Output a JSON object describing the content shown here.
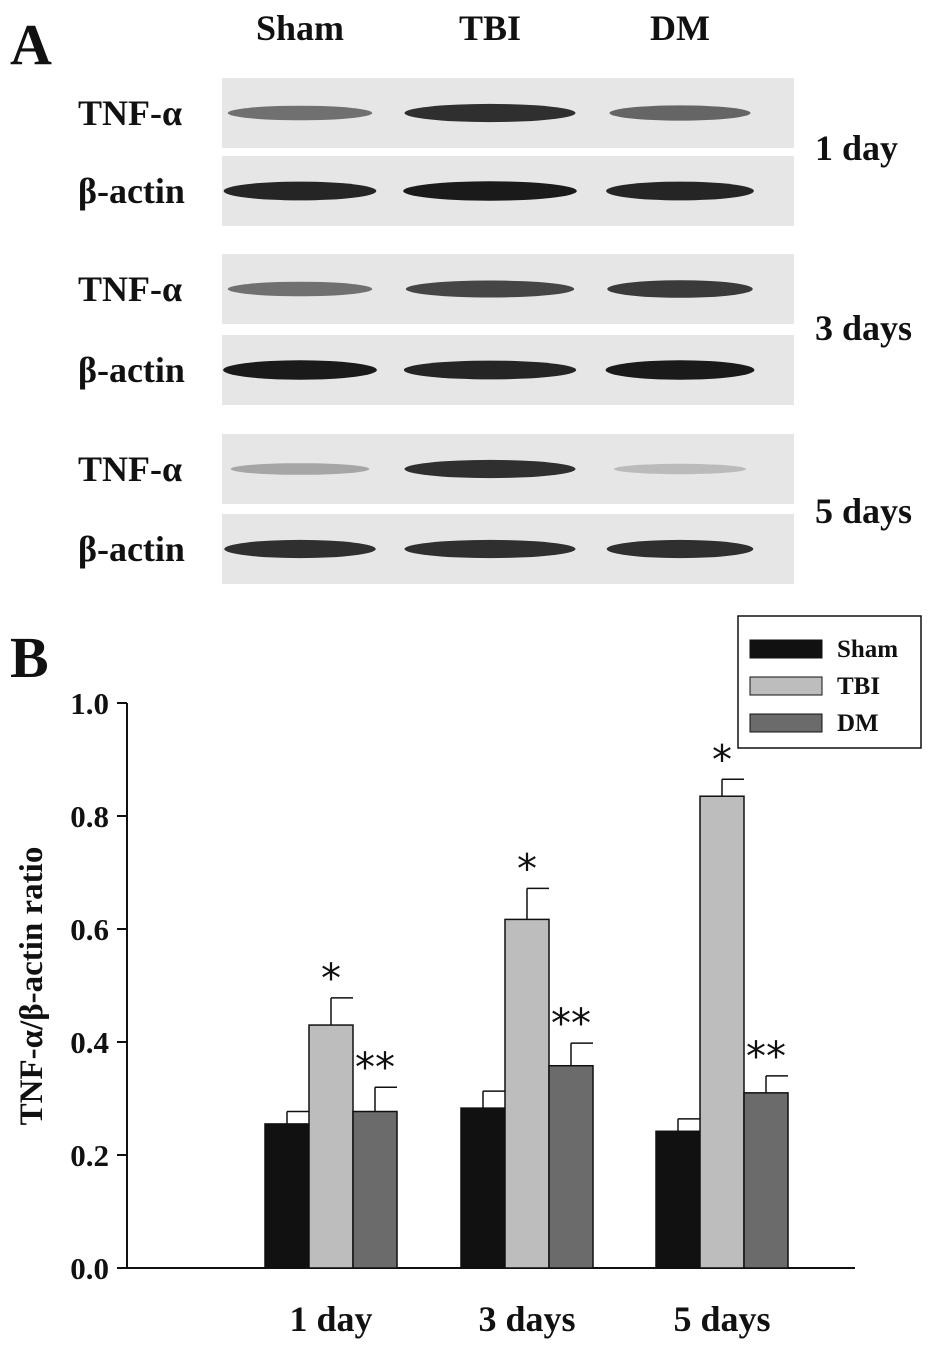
{
  "panel_a": {
    "label": "A",
    "columns": [
      "Sham",
      "TBI",
      "DM"
    ],
    "rows": [
      {
        "label": "TNF-α",
        "intensities": [
          0.55,
          0.85,
          0.6
        ]
      },
      {
        "label": "β-actin",
        "intensities": [
          0.9,
          0.95,
          0.9
        ]
      },
      {
        "label": "TNF-α",
        "intensities": [
          0.55,
          0.75,
          0.8
        ]
      },
      {
        "label": "β-actin",
        "intensities": [
          0.95,
          0.9,
          0.95
        ]
      },
      {
        "label": "TNF-α",
        "intensities": [
          0.3,
          0.85,
          0.2
        ]
      },
      {
        "label": "β-actin",
        "intensities": [
          0.85,
          0.85,
          0.85
        ]
      }
    ],
    "group_labels": [
      "1 day",
      "3 days",
      "5 days"
    ]
  },
  "chart_data": {
    "panel_label": "B",
    "type": "bar",
    "categories": [
      "1 day",
      "3 days",
      "5 days"
    ],
    "series": [
      {
        "name": "Sham",
        "values": [
          0.255,
          0.283,
          0.242
        ],
        "errors": [
          0.022,
          0.03,
          0.022
        ],
        "color": "#111111",
        "annotations": [
          "",
          "",
          ""
        ]
      },
      {
        "name": "TBI",
        "values": [
          0.43,
          0.617,
          0.835
        ],
        "errors": [
          0.048,
          0.055,
          0.03
        ],
        "color": "#bdbdbd",
        "annotations": [
          "*",
          "*",
          "*"
        ]
      },
      {
        "name": "DM",
        "values": [
          0.277,
          0.358,
          0.31
        ],
        "errors": [
          0.043,
          0.04,
          0.03
        ],
        "color": "#6b6b6b",
        "annotations": [
          "**",
          "**",
          "**"
        ]
      }
    ],
    "ylabel": "TNF-α/β-actin ratio",
    "xlabel": "",
    "ylim": [
      0,
      1.0
    ],
    "yticks": [
      "0.0",
      "0.2",
      "0.4",
      "0.6",
      "0.8",
      "1.0"
    ],
    "legend_position": "top-right",
    "grid": false
  }
}
